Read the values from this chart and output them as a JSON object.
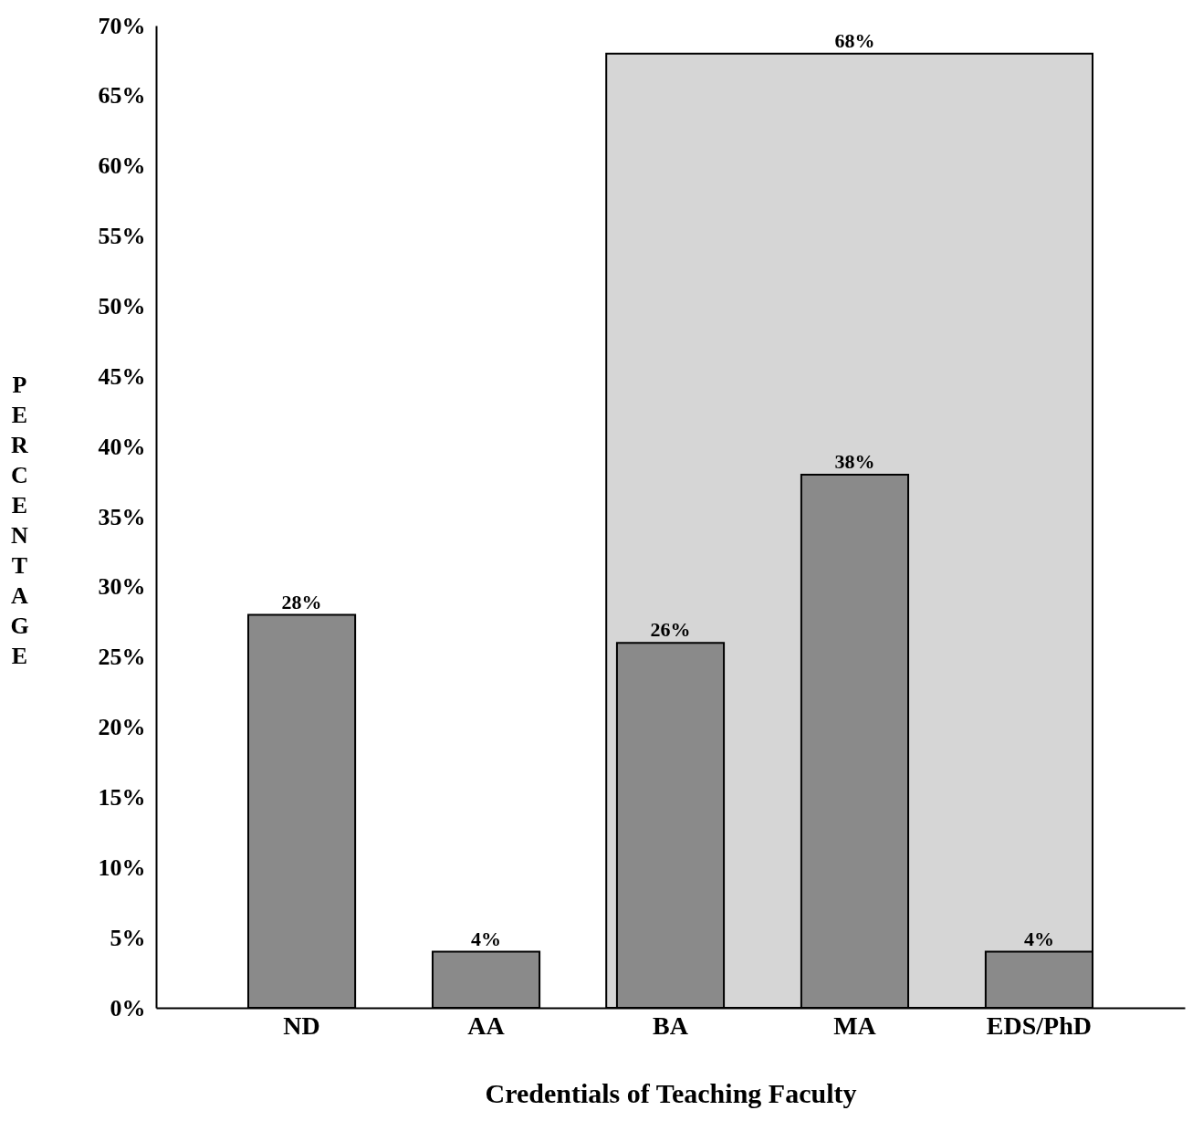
{
  "chart_data": {
    "type": "bar",
    "xlabel": "Credentials of Teaching Faculty",
    "ylabel": "PERCENTAGE",
    "categories": [
      "ND",
      "AA",
      "BA",
      "MA",
      "EDS/PhD"
    ],
    "values": [
      28,
      4,
      26,
      38,
      4
    ],
    "value_labels": [
      "28%",
      "4%",
      "26%",
      "38%",
      "4%"
    ],
    "color": "#8a8a8a",
    "ylim": [
      0,
      70
    ],
    "yticks": [
      {
        "value": 0,
        "label": "0%"
      },
      {
        "value": 5,
        "label": "5%"
      },
      {
        "value": 10,
        "label": "10%"
      },
      {
        "value": 15,
        "label": "15%"
      },
      {
        "value": 20,
        "label": "20%"
      },
      {
        "value": 25,
        "label": "25%"
      },
      {
        "value": 30,
        "label": "30%"
      },
      {
        "value": 35,
        "label": "35%"
      },
      {
        "value": 40,
        "label": "40%"
      },
      {
        "value": 45,
        "label": "45%"
      },
      {
        "value": 50,
        "label": "50%"
      },
      {
        "value": 55,
        "label": "55%"
      },
      {
        "value": 60,
        "label": "60%"
      },
      {
        "value": 65,
        "label": "65%"
      },
      {
        "value": 70,
        "label": "70%"
      }
    ],
    "bands": [
      {
        "axis": "x",
        "from": "BA",
        "to": "EDS/PhD",
        "color": "#d6d6d6"
      }
    ],
    "annotations": [
      {
        "text": "68%",
        "x": "MA",
        "y": 68
      }
    ],
    "grid": false
  }
}
